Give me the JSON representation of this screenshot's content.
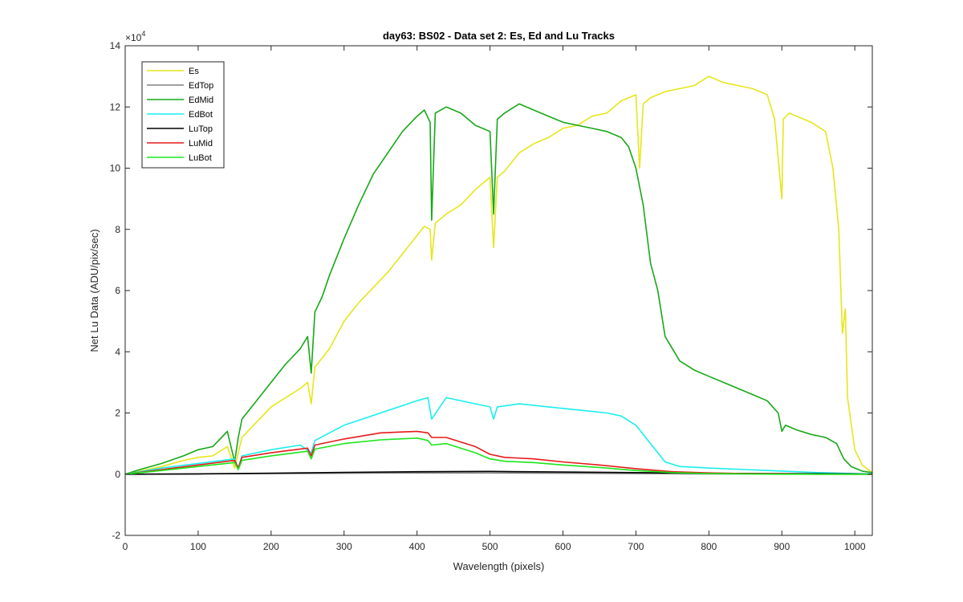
{
  "chart_data": {
    "type": "line",
    "title": "day63: BS02 - Data set 2: Es, Ed and Lu Tracks",
    "xlabel": "Wavelength (pixels)",
    "ylabel": "Net Lu Data (ADU/pix/sec)",
    "xlim": [
      0,
      1024
    ],
    "ylim": [
      -2,
      14
    ],
    "y_exponent_label": "×10",
    "y_exponent_power": "4",
    "x_ticks": [
      0,
      100,
      200,
      300,
      400,
      500,
      600,
      700,
      800,
      900,
      1000
    ],
    "x_tick_labels": [
      "0",
      "100",
      "200",
      "300",
      "400",
      "500",
      "600",
      "700",
      "800",
      "900",
      "1000"
    ],
    "y_ticks": [
      -2,
      0,
      2,
      4,
      6,
      8,
      10,
      12,
      14
    ],
    "y_tick_labels": [
      "-2",
      "0",
      "2",
      "4",
      "6",
      "8",
      "10",
      "12",
      "14"
    ],
    "legend_position": "top-left",
    "series": [
      {
        "name": "Es",
        "color": "#e6e61a",
        "x": [
          0,
          20,
          50,
          80,
          100,
          120,
          140,
          150,
          155,
          160,
          180,
          200,
          220,
          240,
          250,
          255,
          260,
          270,
          280,
          300,
          320,
          340,
          360,
          380,
          400,
          410,
          418,
          420,
          425,
          440,
          460,
          480,
          500,
          505,
          510,
          520,
          540,
          560,
          580,
          600,
          620,
          640,
          660,
          680,
          700,
          705,
          710,
          720,
          740,
          760,
          780,
          800,
          820,
          840,
          860,
          880,
          890,
          900,
          902,
          910,
          920,
          940,
          960,
          970,
          978,
          983,
          987,
          990,
          1000,
          1010,
          1024
        ],
        "y": [
          0.0,
          0.1,
          0.25,
          0.45,
          0.55,
          0.6,
          0.9,
          0.2,
          0.7,
          1.2,
          1.7,
          2.2,
          2.5,
          2.8,
          3.0,
          2.3,
          3.5,
          3.8,
          4.1,
          5.0,
          5.6,
          6.1,
          6.6,
          7.2,
          7.8,
          8.1,
          8.0,
          7.0,
          8.2,
          8.5,
          8.8,
          9.3,
          9.7,
          7.4,
          9.7,
          9.9,
          10.5,
          10.8,
          11.0,
          11.3,
          11.4,
          11.7,
          11.8,
          12.2,
          12.4,
          10.0,
          12.1,
          12.3,
          12.5,
          12.6,
          12.7,
          13.0,
          12.8,
          12.7,
          12.6,
          12.4,
          11.6,
          9.0,
          11.6,
          11.8,
          11.7,
          11.5,
          11.2,
          10.0,
          8.0,
          4.6,
          5.4,
          2.5,
          0.8,
          0.3,
          0.05
        ]
      },
      {
        "name": "EdTop",
        "color": "#808080",
        "x": [
          0,
          100,
          200,
          300,
          400,
          500,
          600,
          700,
          800,
          900,
          1000,
          1024
        ],
        "y": [
          0.0,
          0.01,
          0.02,
          0.03,
          0.04,
          0.04,
          0.03,
          0.02,
          0.01,
          0.01,
          0.0,
          0.0
        ]
      },
      {
        "name": "EdMid",
        "color": "#17a817",
        "x": [
          0,
          20,
          50,
          80,
          100,
          120,
          140,
          150,
          155,
          160,
          180,
          200,
          220,
          240,
          250,
          255,
          260,
          270,
          280,
          300,
          320,
          340,
          360,
          380,
          400,
          410,
          418,
          420,
          425,
          440,
          460,
          480,
          500,
          505,
          510,
          520,
          540,
          560,
          580,
          600,
          620,
          640,
          660,
          680,
          690,
          700,
          710,
          720,
          730,
          740,
          760,
          780,
          800,
          820,
          840,
          860,
          880,
          895,
          900,
          905,
          920,
          940,
          960,
          975,
          985,
          995,
          1010,
          1024
        ],
        "y": [
          0.0,
          0.15,
          0.35,
          0.6,
          0.8,
          0.9,
          1.4,
          0.4,
          1.2,
          1.8,
          2.4,
          3.0,
          3.6,
          4.1,
          4.5,
          3.3,
          5.3,
          5.8,
          6.5,
          7.7,
          8.8,
          9.8,
          10.5,
          11.2,
          11.7,
          11.9,
          11.5,
          8.3,
          11.8,
          12.0,
          11.8,
          11.4,
          11.2,
          8.5,
          11.6,
          11.8,
          12.1,
          11.9,
          11.7,
          11.5,
          11.4,
          11.3,
          11.2,
          11.0,
          10.7,
          10.0,
          8.8,
          6.9,
          6.0,
          4.5,
          3.7,
          3.4,
          3.2,
          3.0,
          2.8,
          2.6,
          2.4,
          2.0,
          1.4,
          1.6,
          1.45,
          1.3,
          1.2,
          1.0,
          0.5,
          0.25,
          0.1,
          0.05
        ]
      },
      {
        "name": "EdBot",
        "color": "#1aeeee",
        "x": [
          0,
          50,
          100,
          150,
          155,
          160,
          200,
          240,
          255,
          260,
          300,
          350,
          400,
          415,
          420,
          440,
          480,
          500,
          505,
          510,
          540,
          580,
          600,
          640,
          660,
          680,
          700,
          720,
          740,
          760,
          800,
          850,
          900,
          950,
          1000,
          1024
        ],
        "y": [
          0.0,
          0.2,
          0.35,
          0.5,
          0.2,
          0.6,
          0.8,
          0.95,
          0.7,
          1.1,
          1.6,
          2.0,
          2.4,
          2.5,
          1.8,
          2.5,
          2.3,
          2.2,
          1.8,
          2.2,
          2.3,
          2.2,
          2.15,
          2.05,
          2.0,
          1.9,
          1.6,
          1.0,
          0.4,
          0.25,
          0.2,
          0.15,
          0.1,
          0.05,
          0.02,
          0.01
        ]
      },
      {
        "name": "LuTop",
        "color": "#000000",
        "x": [
          0,
          100,
          200,
          300,
          400,
          500,
          600,
          700,
          800,
          900,
          1000,
          1024
        ],
        "y": [
          0.0,
          0.01,
          0.03,
          0.06,
          0.08,
          0.09,
          0.07,
          0.05,
          0.03,
          0.02,
          0.01,
          0.0
        ]
      },
      {
        "name": "LuMid",
        "color": "#e61a1a",
        "x": [
          0,
          50,
          100,
          150,
          155,
          160,
          200,
          250,
          255,
          260,
          300,
          350,
          400,
          415,
          420,
          440,
          480,
          500,
          520,
          560,
          600,
          650,
          700,
          750,
          800,
          850,
          900,
          950,
          1000,
          1024
        ],
        "y": [
          0.0,
          0.15,
          0.3,
          0.45,
          0.2,
          0.55,
          0.7,
          0.85,
          0.6,
          0.95,
          1.15,
          1.35,
          1.4,
          1.35,
          1.2,
          1.2,
          0.9,
          0.65,
          0.55,
          0.5,
          0.4,
          0.3,
          0.18,
          0.08,
          0.04,
          0.02,
          0.01,
          0.0,
          0.0,
          0.0
        ]
      },
      {
        "name": "LuBot",
        "color": "#1ae61a",
        "x": [
          0,
          50,
          100,
          150,
          155,
          160,
          200,
          250,
          255,
          260,
          300,
          350,
          400,
          415,
          420,
          440,
          480,
          500,
          520,
          560,
          600,
          650,
          700,
          750,
          800,
          850,
          900,
          950,
          1000,
          1024
        ],
        "y": [
          0.0,
          0.12,
          0.25,
          0.38,
          0.15,
          0.45,
          0.6,
          0.75,
          0.5,
          0.82,
          1.0,
          1.12,
          1.18,
          1.1,
          0.95,
          1.0,
          0.7,
          0.5,
          0.42,
          0.38,
          0.3,
          0.22,
          0.12,
          0.05,
          0.02,
          0.01,
          0.0,
          0.0,
          0.0,
          0.0
        ]
      }
    ]
  }
}
